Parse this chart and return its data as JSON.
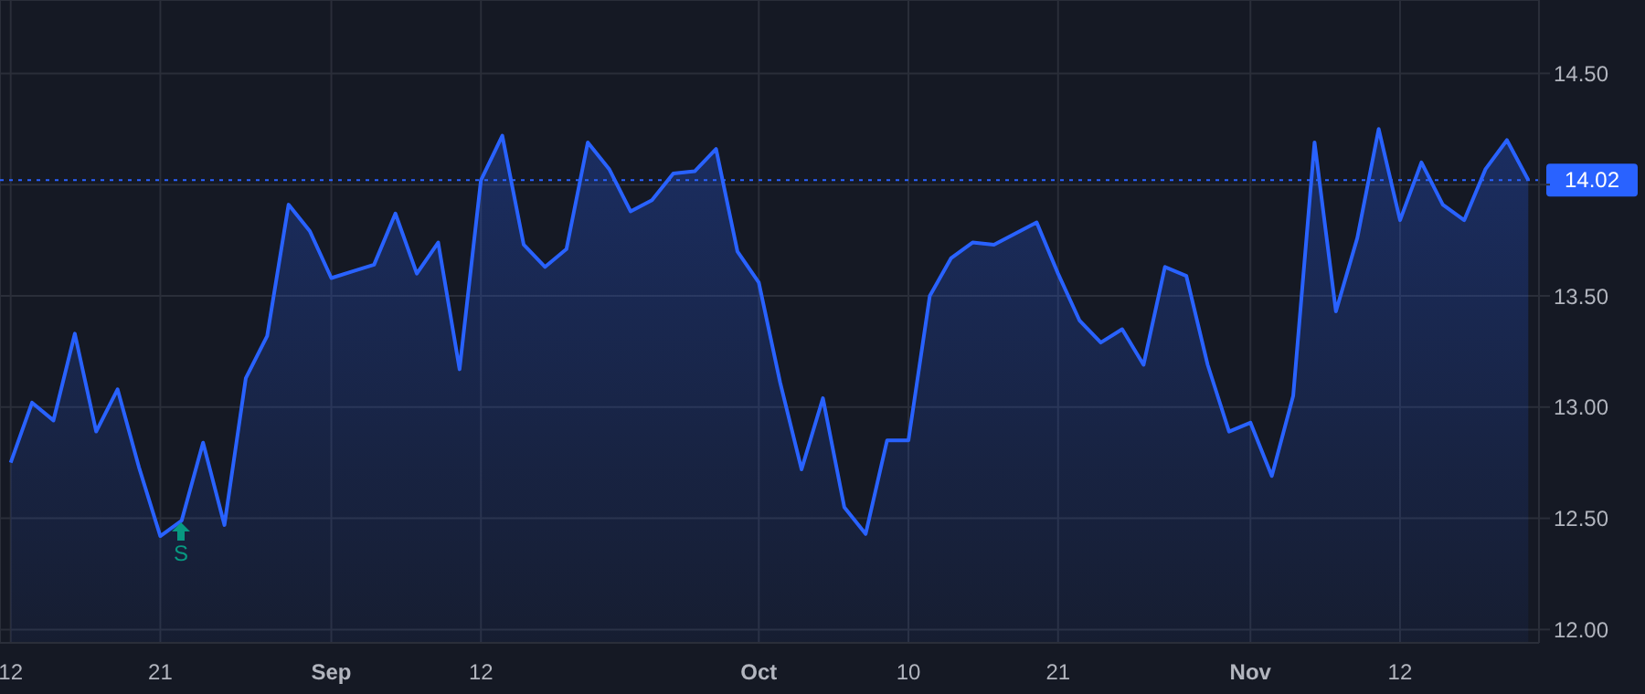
{
  "chart_data": {
    "type": "area",
    "categories": [
      "12",
      null,
      null,
      null,
      null,
      null,
      null,
      "21",
      null,
      null,
      null,
      null,
      null,
      null,
      null,
      "Sep",
      null,
      null,
      null,
      null,
      null,
      null,
      "12",
      null,
      null,
      null,
      null,
      null,
      null,
      null,
      null,
      null,
      null,
      null,
      null,
      "Oct",
      null,
      null,
      null,
      null,
      null,
      null,
      "10",
      null,
      null,
      null,
      null,
      null,
      null,
      "21",
      null,
      null,
      null,
      null,
      null,
      null,
      null,
      null,
      "Nov",
      null,
      null,
      null,
      null,
      null,
      null,
      "12",
      null,
      null,
      null,
      null,
      null,
      null
    ],
    "series": [
      {
        "color": "#2962ff",
        "values": [
          12.75,
          13.02,
          12.94,
          13.33,
          12.89,
          13.08,
          12.73,
          12.42,
          12.49,
          12.84,
          12.47,
          13.13,
          13.32,
          13.91,
          13.79,
          13.58,
          13.61,
          13.64,
          13.87,
          13.6,
          13.74,
          13.17,
          14.02,
          14.22,
          13.73,
          13.63,
          13.71,
          14.19,
          14.07,
          13.88,
          13.93,
          14.05,
          14.06,
          14.16,
          13.7,
          13.56,
          13.11,
          12.72,
          13.04,
          12.55,
          12.43,
          12.85,
          12.85,
          13.5,
          13.67,
          13.74,
          13.73,
          13.78,
          13.83,
          13.6,
          13.39,
          13.29,
          13.35,
          13.19,
          13.63,
          13.59,
          13.19,
          12.89,
          12.93,
          12.69,
          13.05,
          14.19,
          13.43,
          13.76,
          14.25,
          13.84,
          14.1,
          13.91,
          13.84,
          14.07,
          14.2,
          14.02
        ]
      }
    ],
    "ylim": [
      11.94,
      14.83
    ],
    "yticks": [
      {
        "value": 12,
        "label": "12.00"
      },
      {
        "value": 12.5,
        "label": "12.50"
      },
      {
        "value": 13,
        "label": "13.00"
      },
      {
        "value": 13.5,
        "label": "13.50"
      },
      {
        "value": 14,
        "label": null
      },
      {
        "value": 14.5,
        "label": "14.50"
      }
    ],
    "grid": true,
    "ref_lines": [
      {
        "axis": "y",
        "value": 14.02,
        "label": "14.02",
        "color": "#2962ff",
        "line_style": "dotted"
      }
    ],
    "annotations": [
      "S"
    ]
  }
}
